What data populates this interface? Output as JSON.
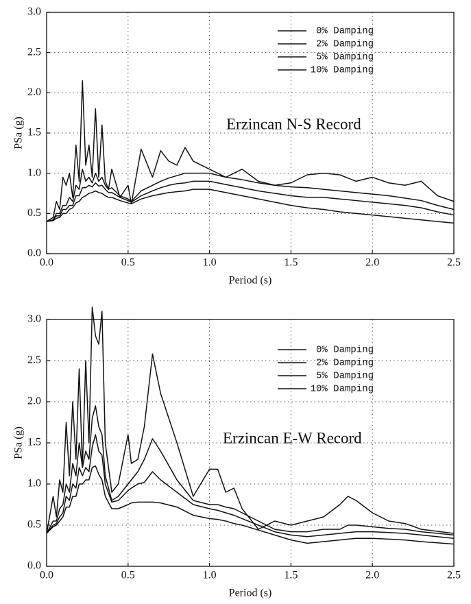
{
  "chart_data": [
    {
      "type": "line",
      "annotation": "Erzincan N-S Record",
      "x_label": "Period (s)",
      "y_label": "PSa (g)",
      "xlim": [
        0,
        2.5
      ],
      "ylim": [
        0,
        3
      ],
      "xticks": [
        {
          "value": 0,
          "label": "0.0"
        },
        0.5,
        {
          "value": 1,
          "label": "1.0"
        },
        1.5,
        {
          "value": 2,
          "label": "2.0"
        },
        2.5
      ],
      "yticks": [
        {
          "value": 0,
          "label": "0.0"
        },
        0.5,
        {
          "value": 1,
          "label": "1.0"
        },
        1.5,
        {
          "value": 2,
          "label": "2.0"
        },
        2.5,
        {
          "value": 3,
          "label": "3.0"
        }
      ],
      "grid": true,
      "legend": "upper right",
      "x": [
        0,
        0.04,
        0.06,
        0.08,
        0.1,
        0.12,
        0.14,
        0.16,
        0.18,
        0.2,
        0.22,
        0.24,
        0.26,
        0.28,
        0.3,
        0.32,
        0.34,
        0.36,
        0.38,
        0.4,
        0.45,
        0.5,
        0.52,
        0.58,
        0.65,
        0.7,
        0.75,
        0.8,
        0.85,
        0.9,
        1.0,
        1.1,
        1.2,
        1.3,
        1.4,
        1.5,
        1.6,
        1.7,
        1.8,
        1.9,
        2.0,
        2.1,
        2.2,
        2.3,
        2.4,
        2.5
      ],
      "series": [
        {
          "name": "0% Damping",
          "color": "#111111",
          "values": [
            0.4,
            0.45,
            0.65,
            0.55,
            0.95,
            0.85,
            1.0,
            0.7,
            1.35,
            0.9,
            2.15,
            1.1,
            1.35,
            0.95,
            1.8,
            0.95,
            1.6,
            0.9,
            0.8,
            1.05,
            0.7,
            0.85,
            0.62,
            1.3,
            0.95,
            1.28,
            1.15,
            1.1,
            1.32,
            1.15,
            1.05,
            0.95,
            1.05,
            0.9,
            0.85,
            0.88,
            0.98,
            1.0,
            0.98,
            0.9,
            0.95,
            0.88,
            0.85,
            0.9,
            0.72,
            0.65
          ]
        },
        {
          "name": "2% Damping",
          "color": "#111111",
          "values": [
            0.4,
            0.42,
            0.5,
            0.5,
            0.6,
            0.6,
            0.7,
            0.65,
            0.85,
            0.8,
            1.05,
            0.9,
            0.95,
            0.88,
            1.0,
            0.9,
            0.95,
            0.85,
            0.8,
            0.82,
            0.72,
            0.68,
            0.65,
            0.78,
            0.85,
            0.9,
            0.94,
            0.97,
            1.0,
            1.0,
            1.0,
            0.95,
            0.92,
            0.88,
            0.85,
            0.83,
            0.82,
            0.8,
            0.78,
            0.76,
            0.74,
            0.72,
            0.69,
            0.66,
            0.6,
            0.55
          ]
        },
        {
          "name": "5% Damping",
          "color": "#111111",
          "values": [
            0.4,
            0.42,
            0.47,
            0.47,
            0.55,
            0.55,
            0.6,
            0.6,
            0.72,
            0.72,
            0.82,
            0.82,
            0.85,
            0.83,
            0.88,
            0.84,
            0.85,
            0.8,
            0.76,
            0.76,
            0.7,
            0.66,
            0.64,
            0.72,
            0.78,
            0.82,
            0.85,
            0.87,
            0.88,
            0.9,
            0.9,
            0.86,
            0.82,
            0.78,
            0.75,
            0.72,
            0.7,
            0.7,
            0.68,
            0.66,
            0.64,
            0.62,
            0.6,
            0.57,
            0.52,
            0.48
          ]
        },
        {
          "name": "10% Damping",
          "color": "#111111",
          "values": [
            0.4,
            0.41,
            0.44,
            0.45,
            0.5,
            0.5,
            0.55,
            0.57,
            0.63,
            0.65,
            0.7,
            0.72,
            0.75,
            0.76,
            0.78,
            0.76,
            0.75,
            0.72,
            0.7,
            0.7,
            0.66,
            0.63,
            0.62,
            0.68,
            0.72,
            0.74,
            0.76,
            0.77,
            0.78,
            0.8,
            0.8,
            0.76,
            0.72,
            0.68,
            0.64,
            0.6,
            0.57,
            0.55,
            0.52,
            0.5,
            0.48,
            0.46,
            0.44,
            0.42,
            0.4,
            0.38
          ]
        }
      ]
    },
    {
      "type": "line",
      "annotation": "Erzincan E-W Record",
      "x_label": "Period (s)",
      "y_label": "PSa (g)",
      "xlim": [
        0,
        2.5
      ],
      "ylim": [
        0,
        3
      ],
      "xticks": [
        {
          "value": 0,
          "label": "0.0"
        },
        0.5,
        {
          "value": 1,
          "label": "1.0"
        },
        1.5,
        {
          "value": 2,
          "label": "2.0"
        },
        2.5
      ],
      "yticks": [
        {
          "value": 0,
          "label": "0.0"
        },
        0.5,
        {
          "value": 1,
          "label": "1.0"
        },
        1.5,
        {
          "value": 2,
          "label": "2.0"
        },
        2.5,
        {
          "value": 3,
          "label": "3.0"
        }
      ],
      "grid": true,
      "legend": "upper right",
      "x": [
        0,
        0.04,
        0.06,
        0.08,
        0.1,
        0.12,
        0.14,
        0.16,
        0.18,
        0.2,
        0.22,
        0.24,
        0.26,
        0.28,
        0.3,
        0.32,
        0.34,
        0.36,
        0.4,
        0.44,
        0.5,
        0.52,
        0.56,
        0.6,
        0.65,
        0.7,
        0.8,
        0.9,
        1.0,
        1.05,
        1.1,
        1.15,
        1.2,
        1.3,
        1.4,
        1.5,
        1.6,
        1.7,
        1.8,
        1.85,
        1.9,
        2.0,
        2.1,
        2.2,
        2.3,
        2.5
      ],
      "series": [
        {
          "name": "0% Damping",
          "color": "#111111",
          "values": [
            0.4,
            0.85,
            0.6,
            1.05,
            0.9,
            1.75,
            1.1,
            2.0,
            1.3,
            2.4,
            1.2,
            2.5,
            1.5,
            3.15,
            2.8,
            2.7,
            3.1,
            1.5,
            0.9,
            1.0,
            1.6,
            1.25,
            1.3,
            1.7,
            2.58,
            2.1,
            1.5,
            0.85,
            1.18,
            1.18,
            0.9,
            0.95,
            0.7,
            0.45,
            0.55,
            0.5,
            0.55,
            0.6,
            0.75,
            0.85,
            0.8,
            0.65,
            0.55,
            0.52,
            0.45,
            0.4
          ]
        },
        {
          "name": "2% Damping",
          "color": "#111111",
          "values": [
            0.4,
            0.55,
            0.55,
            0.7,
            0.75,
            1.0,
            0.9,
            1.25,
            1.1,
            1.5,
            1.2,
            1.4,
            1.3,
            1.8,
            1.95,
            1.7,
            1.6,
            1.1,
            0.8,
            0.85,
            1.0,
            1.05,
            1.15,
            1.3,
            1.55,
            1.4,
            1.05,
            0.8,
            0.75,
            0.75,
            0.72,
            0.7,
            0.65,
            0.55,
            0.45,
            0.42,
            0.42,
            0.45,
            0.45,
            0.5,
            0.5,
            0.48,
            0.46,
            0.45,
            0.42,
            0.38
          ]
        },
        {
          "name": "5% Damping",
          "color": "#111111",
          "values": [
            0.4,
            0.5,
            0.52,
            0.6,
            0.65,
            0.85,
            0.8,
            1.0,
            0.95,
            1.2,
            1.1,
            1.2,
            1.15,
            1.45,
            1.6,
            1.4,
            1.35,
            1.0,
            0.78,
            0.8,
            0.92,
            0.95,
            1.0,
            1.02,
            1.15,
            1.05,
            0.9,
            0.75,
            0.7,
            0.68,
            0.65,
            0.62,
            0.58,
            0.5,
            0.42,
            0.38,
            0.36,
            0.38,
            0.4,
            0.41,
            0.42,
            0.42,
            0.41,
            0.4,
            0.38,
            0.34
          ]
        },
        {
          "name": "10% Damping",
          "color": "#111111",
          "values": [
            0.4,
            0.48,
            0.5,
            0.55,
            0.6,
            0.72,
            0.72,
            0.85,
            0.85,
            1.0,
            1.0,
            1.05,
            1.05,
            1.2,
            1.22,
            1.12,
            1.05,
            0.85,
            0.7,
            0.7,
            0.75,
            0.77,
            0.78,
            0.78,
            0.78,
            0.77,
            0.72,
            0.62,
            0.58,
            0.57,
            0.55,
            0.52,
            0.5,
            0.44,
            0.38,
            0.32,
            0.28,
            0.3,
            0.32,
            0.33,
            0.34,
            0.34,
            0.33,
            0.32,
            0.3,
            0.27
          ]
        }
      ]
    }
  ]
}
